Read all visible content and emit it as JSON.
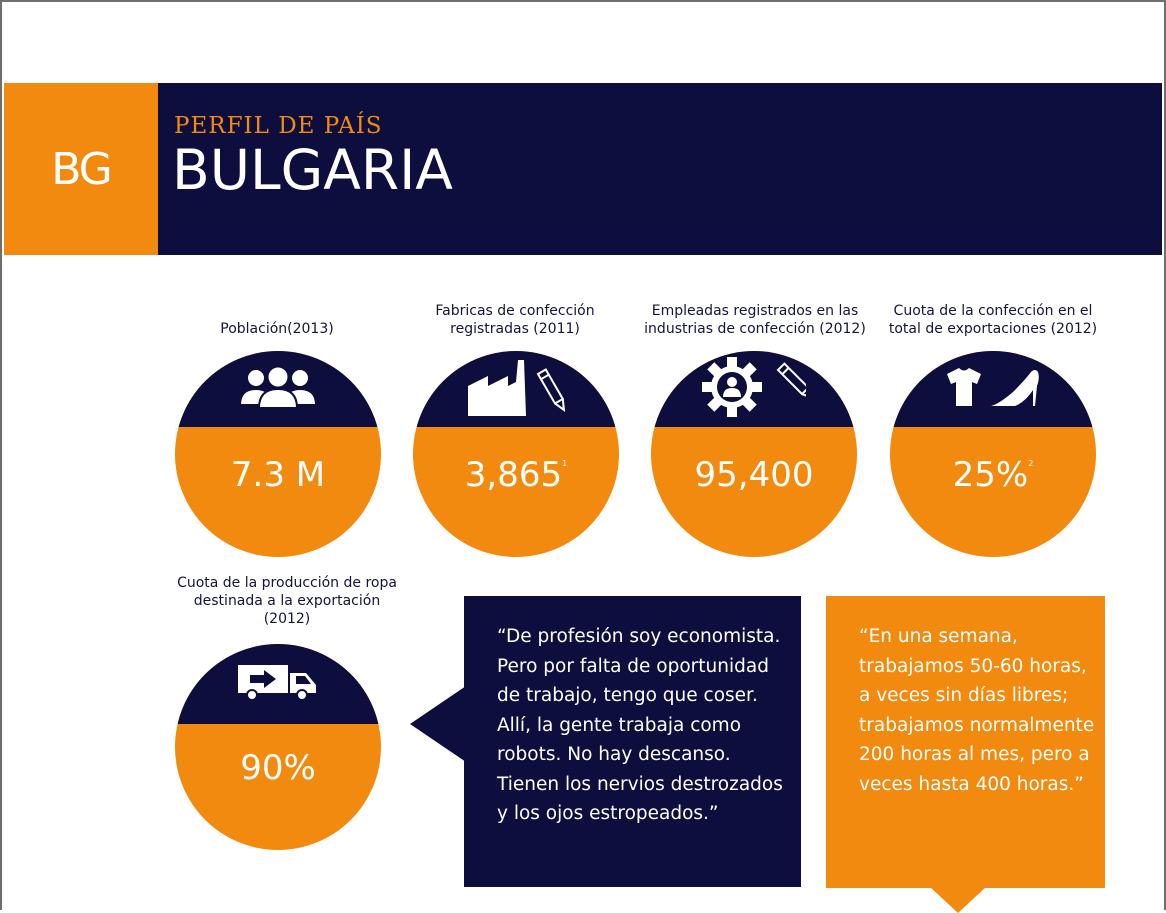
{
  "header": {
    "country_code": "BG",
    "kicker": "PERFIL DE PAÍS",
    "title": "BULGARIA"
  },
  "stats": [
    {
      "label": "Población(2013)",
      "value": "7.3 M",
      "footnote": "",
      "icon": "people-icon"
    },
    {
      "label": "Fabricas de confección registradas (2011)",
      "value": "3,865",
      "footnote": "1",
      "icon": "factory-icon"
    },
    {
      "label": "Empleadas registrados en las industrias de confección (2012)",
      "value": "95,400",
      "footnote": "",
      "icon": "gear-person-icon"
    },
    {
      "label": "Cuota de la confección en el total de exportaciones (2012)",
      "value": "25%",
      "footnote": "2",
      "icon": "tshirt-heel-icon"
    },
    {
      "label": "Cuota de la producción de ropa destinada a la exportación (2012)",
      "value": "90%",
      "footnote": "",
      "icon": "truck-icon"
    }
  ],
  "quotes": {
    "dark": "“De profesión soy economista. Pero por falta de oportunidad de trabajo, tengo que coser. Allí, la gente trabaja como robots. No hay descanso. Tienen los nervios destrozados y los ojos estropeados.”",
    "orange": "“En una semana, trabajamos 50-60 horas, a veces sin días libres; trabajamos normalmente 200 horas al mes, pero a veces hasta 400 horas.”"
  },
  "colors": {
    "navy": "#0d0e3d",
    "orange": "#f28a0f",
    "text": "#14143a"
  }
}
